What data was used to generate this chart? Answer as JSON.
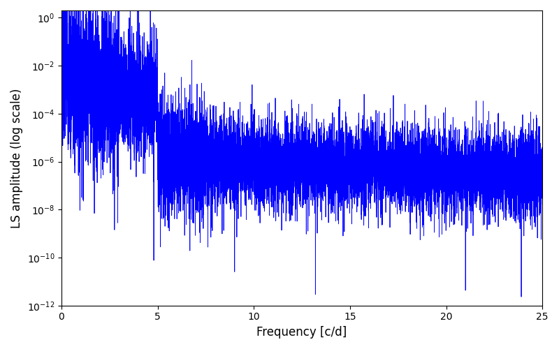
{
  "title": "",
  "xlabel": "Frequency [c/d]",
  "ylabel": "LS amplitude (log scale)",
  "xlim": [
    0,
    25
  ],
  "ylim": [
    1e-12,
    2.0
  ],
  "line_color": "#0000ff",
  "line_width": 0.6,
  "num_points": 10000,
  "freq_max": 25.0,
  "seed": 7,
  "background_color": "#ffffff",
  "figsize": [
    8.0,
    5.0
  ],
  "dpi": 100
}
